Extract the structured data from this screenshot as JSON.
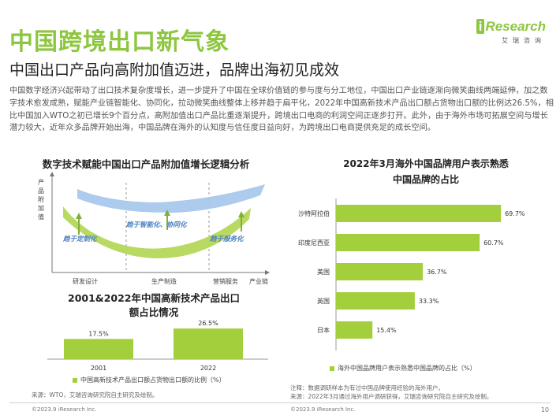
{
  "header": {
    "title": "中国跨境出口新气象",
    "subtitle": "中国出口产品向高附加值迈进，品牌出海初见成效",
    "logo_text": "Research",
    "logo_i": "i",
    "logo_sub": "艾瑞咨询"
  },
  "intro": "中国数字经济兴起带动了出口技术复杂度增长，进一步提升了中国在全球价值链的参与度与分工地位，中国出口产业链逐渐向微笑曲线两端延伸，加之数字技术愈发成熟，赋能产业链智能化、协同化，拉动微笑曲线整体上移并趋于扁平化，2022年中国高新技术产品出口额占货物出口额的比例达26.5%，相比中国加入WTO之初已增长9个百分点，高附加值出口产品比重逐渐提升，跨境出口电商的利润空间正逐步打开。此外，由于海外市场可拓展空间与增长潜力较大，近年众多品牌开始出海，中国品牌在海外的认知度与信任度日益向好，为跨境出口电商提供充足的成长空间。",
  "smile": {
    "title": "数字技术赋能中国出口产品附加值增长逻辑分析",
    "y_label_chars": [
      "产",
      "品",
      "附",
      "加",
      "值"
    ],
    "x_labels": [
      "研发设计",
      "生产制造",
      "营销服务",
      "产业链"
    ],
    "tags": [
      "趋于定制化",
      "趋于智能化、协同化",
      "趋于服务化"
    ],
    "colors": {
      "upper": "#a8c8ec",
      "lower": "#b5d85a"
    }
  },
  "hightech": {
    "title_line1": "2001&2022年中国高新技术产品出口",
    "title_line2": "额占比情况",
    "legend": "中国高新技术产品出口额占货物出口额的比例（%）",
    "source": "来源：WTO，艾瑞咨询研究院自主研究及绘制。"
  },
  "brand": {
    "title_line1": "2022年3月海外中国品牌用户表示熟悉",
    "title_line2": "中国品牌的占比",
    "legend": "海外中国品牌用户表示熟悉中国品牌的占比（%）",
    "note_line1": "注释：数据调研样本为有过中国品牌使用经验的海外用户。",
    "note_line2": "来源：2022年3月通过海外用户调研获得，艾瑞咨询研究院自主研究及绘制。"
  },
  "chart_data": [
    {
      "type": "bar",
      "categories": [
        "2001",
        "2022"
      ],
      "values": [
        17.5,
        26.5
      ],
      "value_labels": [
        "17.5%",
        "26.5%"
      ],
      "series_name": "中国高新技术产品出口额占货物出口额的比例（%）",
      "color": "#a3cf3d"
    },
    {
      "type": "bar",
      "orientation": "horizontal",
      "categories": [
        "沙特阿拉伯",
        "印度尼西亚",
        "美国",
        "英国",
        "日本"
      ],
      "values": [
        69.7,
        60.7,
        36.7,
        33.3,
        15.4
      ],
      "value_labels": [
        "69.7%",
        "60.7%",
        "36.7%",
        "33.3%",
        "15.4%"
      ],
      "series_name": "海外中国品牌用户表示熟悉中国品牌的占比（%）",
      "color": "#a3cf3d"
    }
  ],
  "footer": {
    "copyright_left": "©2023.9 iResearch Inc.",
    "copyright_right": "©2023.9 iResearch Inc.",
    "page": "10"
  }
}
